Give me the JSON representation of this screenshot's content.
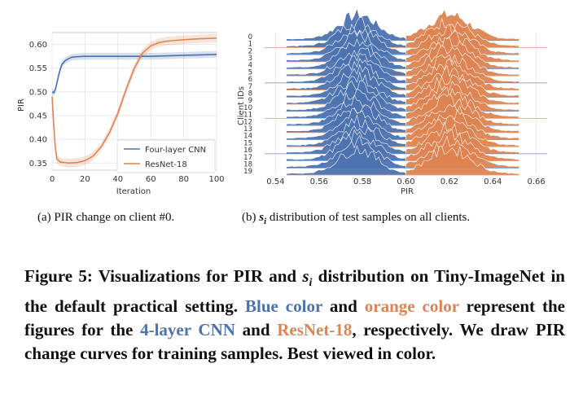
{
  "colors": {
    "blue": "#4c72b0",
    "orange": "#dd8452",
    "grid": "#e8e8e8",
    "axis": "#cccccc",
    "text": "#333333"
  },
  "chart_data": [
    {
      "type": "line",
      "title": "",
      "xlabel": "Iteration",
      "ylabel": "PIR",
      "xlim": [
        0,
        100
      ],
      "ylim": [
        0.335,
        0.625
      ],
      "xticks": [
        0,
        20,
        40,
        60,
        80,
        100
      ],
      "yticks": [
        0.35,
        0.4,
        0.45,
        0.5,
        0.55,
        0.6
      ],
      "xtick_labels": [
        "0",
        "20",
        "40",
        "60",
        "80",
        "100"
      ],
      "ytick_labels": [
        "0.35",
        "0.40",
        "0.45",
        "0.50",
        "0.55",
        "0.60"
      ],
      "grid": true,
      "legend_position": "lower-right",
      "series": [
        {
          "name": "Four-layer CNN",
          "color": "#4c72b0",
          "x": [
            0,
            1,
            2,
            3,
            4,
            5,
            6,
            8,
            10,
            12,
            15,
            20,
            25,
            30,
            40,
            50,
            60,
            70,
            80,
            90,
            100
          ],
          "y": [
            0.5,
            0.498,
            0.505,
            0.52,
            0.535,
            0.548,
            0.558,
            0.566,
            0.57,
            0.573,
            0.574,
            0.575,
            0.575,
            0.575,
            0.575,
            0.575,
            0.575,
            0.576,
            0.577,
            0.578,
            0.579
          ],
          "band": 0.007
        },
        {
          "name": "ResNet-18",
          "color": "#dd8452",
          "x": [
            0,
            1,
            2,
            3,
            5,
            10,
            15,
            20,
            25,
            30,
            35,
            40,
            45,
            50,
            55,
            60,
            65,
            70,
            80,
            90,
            100
          ],
          "y": [
            0.49,
            0.43,
            0.38,
            0.358,
            0.352,
            0.35,
            0.351,
            0.355,
            0.365,
            0.385,
            0.415,
            0.455,
            0.505,
            0.55,
            0.582,
            0.597,
            0.604,
            0.607,
            0.61,
            0.612,
            0.613
          ],
          "band": 0.009
        }
      ]
    },
    {
      "type": "area",
      "xlabel": "PIR",
      "ylabel": "Client IDs",
      "xlim": [
        0.535,
        0.665
      ],
      "xticks": [
        0.54,
        0.56,
        0.58,
        0.6,
        0.62,
        0.64,
        0.66
      ],
      "xtick_labels": [
        "0.54",
        "0.56",
        "0.58",
        "0.60",
        "0.62",
        "0.64",
        "0.66"
      ],
      "categories": [
        "0",
        "1",
        "2",
        "3",
        "4",
        "5",
        "6",
        "7",
        "8",
        "9",
        "10",
        "11",
        "12",
        "13",
        "14",
        "15",
        "16",
        "17",
        "18",
        "19"
      ],
      "grid": true,
      "series": [
        {
          "name": "",
          "color": "#4c72b0",
          "center": 0.578,
          "spread": 0.0085,
          "x_range": [
            0.545,
            0.6
          ]
        },
        {
          "name": "",
          "color": "#dd8452",
          "center": 0.62,
          "spread": 0.0095,
          "x_range": [
            0.6,
            0.652
          ]
        }
      ]
    }
  ],
  "captions": {
    "a": "(a)  PIR change on client #0.",
    "b_prefix": "(b) ",
    "b_symbol": "s",
    "b_sub": "i",
    "b_suffix": " distribution of test samples on all clients."
  },
  "caption": {
    "p1": "Figure 5: Visualizations for PIR and ",
    "symbol": "s",
    "sub": "i",
    "p2": " distribution on Tiny-ImageNet in the default practical setting. ",
    "blue_color": "Blue color",
    "p3": " and ",
    "orange_color": "orange color",
    "p4": " represent the figures for the ",
    "cnn": "4-layer CNN",
    "p5": " and ",
    "resnet": "ResNet-18",
    "p6": ", respectively. We draw PIR change curves for training samples. Best viewed in color."
  }
}
